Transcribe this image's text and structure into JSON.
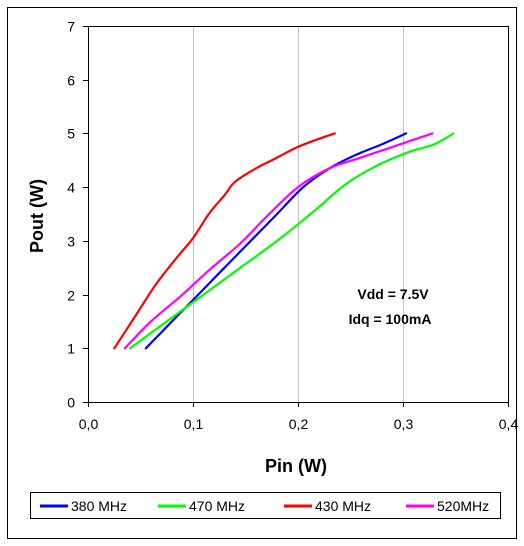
{
  "chart_data": {
    "type": "line",
    "title": "",
    "xlabel": "Pin (W)",
    "ylabel": "Pout (W)",
    "xlim": [
      0,
      0.4
    ],
    "ylim": [
      0,
      7
    ],
    "x_ticks": [
      "0,0",
      "0,1",
      "0,2",
      "0,3",
      "0,4"
    ],
    "y_ticks": [
      "0",
      "1",
      "2",
      "3",
      "4",
      "5",
      "6",
      "7"
    ],
    "grid": {
      "vertical": true,
      "horizontal": false
    },
    "legend_position": "bottom",
    "annotations": [
      "Vdd = 7.5V",
      "Idq = 100mA"
    ],
    "series": [
      {
        "name": "380 MHz",
        "color": "#0000ff",
        "points": [
          [
            0.055,
            1.0
          ],
          [
            0.08,
            1.5
          ],
          [
            0.105,
            2.0
          ],
          [
            0.13,
            2.5
          ],
          [
            0.155,
            3.0
          ],
          [
            0.18,
            3.5
          ],
          [
            0.205,
            4.0
          ],
          [
            0.23,
            4.35
          ],
          [
            0.255,
            4.6
          ],
          [
            0.28,
            4.8
          ],
          [
            0.303,
            5.0
          ]
        ]
      },
      {
        "name": "470 MHz",
        "color": "#00ff00",
        "points": [
          [
            0.04,
            1.0
          ],
          [
            0.075,
            1.5
          ],
          [
            0.11,
            2.0
          ],
          [
            0.145,
            2.5
          ],
          [
            0.18,
            3.0
          ],
          [
            0.215,
            3.55
          ],
          [
            0.245,
            4.05
          ],
          [
            0.275,
            4.4
          ],
          [
            0.305,
            4.65
          ],
          [
            0.33,
            4.8
          ],
          [
            0.348,
            5.0
          ]
        ]
      },
      {
        "name": "430 MHz",
        "color": "#ff0000",
        "points": [
          [
            0.025,
            1.0
          ],
          [
            0.045,
            1.6
          ],
          [
            0.065,
            2.2
          ],
          [
            0.085,
            2.7
          ],
          [
            0.1,
            3.05
          ],
          [
            0.115,
            3.5
          ],
          [
            0.13,
            3.85
          ],
          [
            0.14,
            4.1
          ],
          [
            0.16,
            4.35
          ],
          [
            0.18,
            4.55
          ],
          [
            0.2,
            4.75
          ],
          [
            0.22,
            4.9
          ],
          [
            0.235,
            5.0
          ]
        ]
      },
      {
        "name": "520MHz",
        "color": "#ff00ff",
        "points": [
          [
            0.035,
            1.0
          ],
          [
            0.06,
            1.5
          ],
          [
            0.09,
            2.0
          ],
          [
            0.115,
            2.45
          ],
          [
            0.145,
            2.95
          ],
          [
            0.17,
            3.45
          ],
          [
            0.2,
            4.0
          ],
          [
            0.23,
            4.35
          ],
          [
            0.26,
            4.55
          ],
          [
            0.29,
            4.75
          ],
          [
            0.328,
            5.0
          ]
        ]
      }
    ]
  }
}
